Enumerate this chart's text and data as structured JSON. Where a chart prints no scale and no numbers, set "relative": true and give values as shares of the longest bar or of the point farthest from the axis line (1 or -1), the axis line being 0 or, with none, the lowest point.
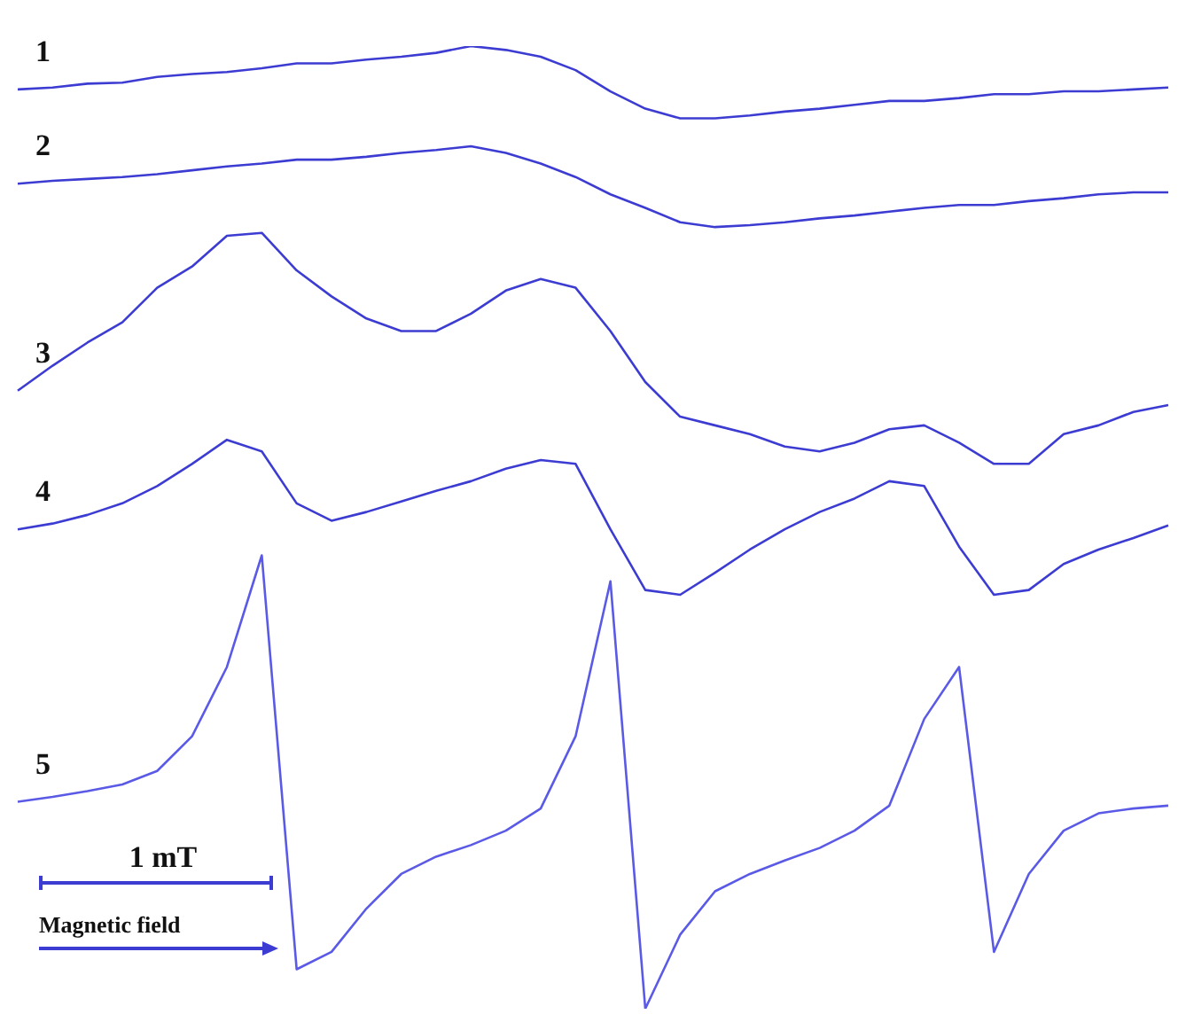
{
  "chart_data": {
    "type": "line",
    "relative": true,
    "marker": "none",
    "line_style": "solid",
    "tick_labels": false,
    "categories": [
      null,
      null,
      null,
      null,
      null,
      null,
      null,
      null,
      null,
      null,
      null,
      null,
      null,
      null,
      null,
      null,
      null,
      null,
      null,
      null,
      null,
      null,
      null,
      null,
      null,
      null,
      null,
      null,
      null,
      null,
      null,
      null,
      null,
      null
    ],
    "series": [
      {
        "name": "1",
        "color": "#3c3cd2",
        "values": [
          0.955,
          0.957,
          0.961,
          0.962,
          0.968,
          0.971,
          0.973,
          0.977,
          0.982,
          0.982,
          0.986,
          0.989,
          0.993,
          1,
          0.996,
          0.989,
          0.975,
          0.953,
          0.935,
          0.925,
          0.925,
          0.928,
          0.932,
          0.935,
          0.939,
          0.943,
          0.943,
          0.946,
          0.95,
          0.95,
          0.953,
          0.953,
          0.955,
          0.957
        ]
      },
      {
        "name": "2",
        "color": "#3c3cd2",
        "values": [
          0.857,
          0.86,
          0.862,
          0.864,
          0.867,
          0.871,
          0.875,
          0.878,
          0.882,
          0.882,
          0.885,
          0.889,
          0.892,
          0.896,
          0.889,
          0.878,
          0.864,
          0.846,
          0.832,
          0.817,
          0.812,
          0.814,
          0.817,
          0.821,
          0.824,
          0.828,
          0.832,
          0.835,
          0.835,
          0.839,
          0.842,
          0.846,
          0.848,
          0.848
        ]
      },
      {
        "name": "3",
        "color": "#3c3cd2",
        "values": [
          0.642,
          0.668,
          0.692,
          0.713,
          0.749,
          0.771,
          0.803,
          0.806,
          0.767,
          0.74,
          0.717,
          0.704,
          0.704,
          0.722,
          0.746,
          0.758,
          0.749,
          0.704,
          0.651,
          0.615,
          0.606,
          0.597,
          0.584,
          0.579,
          0.588,
          0.602,
          0.606,
          0.588,
          0.566,
          0.566,
          0.597,
          0.606,
          0.62,
          0.627
        ]
      },
      {
        "name": "4",
        "color": "#3c3cd2",
        "values": [
          0.498,
          0.504,
          0.513,
          0.525,
          0.543,
          0.566,
          0.591,
          0.579,
          0.525,
          0.507,
          0.516,
          0.527,
          0.538,
          0.548,
          0.561,
          0.57,
          0.566,
          0.498,
          0.435,
          0.43,
          0.453,
          0.477,
          0.498,
          0.516,
          0.53,
          0.548,
          0.543,
          0.48,
          0.43,
          0.435,
          0.462,
          0.477,
          0.489,
          0.502
        ]
      },
      {
        "name": "5",
        "color": "#5a5ae6",
        "values": [
          0.215,
          0.22,
          0.226,
          0.233,
          0.247,
          0.283,
          0.355,
          0.471,
          0.041,
          0.059,
          0.104,
          0.14,
          0.158,
          0.17,
          0.185,
          0.208,
          0.283,
          0.444,
          0,
          0.077,
          0.122,
          0.14,
          0.154,
          0.167,
          0.185,
          0.211,
          0.301,
          0.355,
          0.059,
          0.14,
          0.185,
          0.203,
          0.208,
          0.211
        ]
      }
    ],
    "annotations": [
      "1 mT",
      "Magnetic field"
    ]
  }
}
